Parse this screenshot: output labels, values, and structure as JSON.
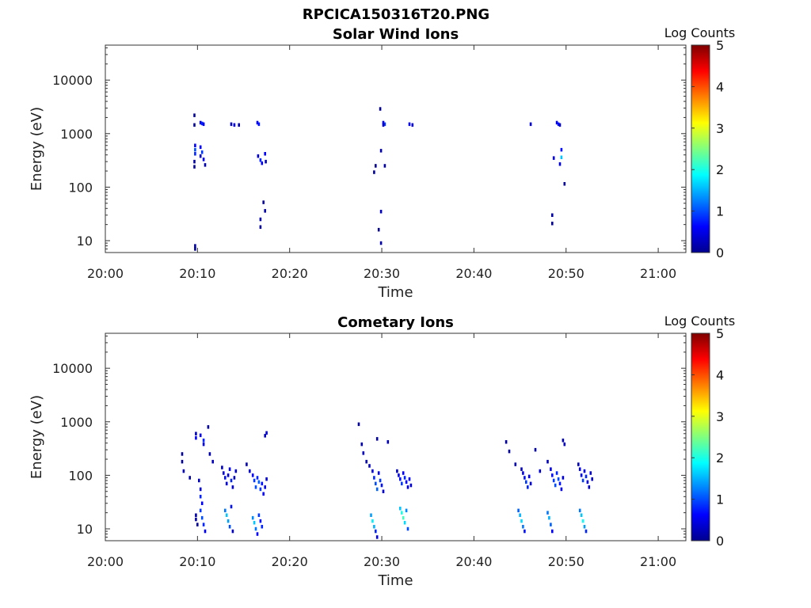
{
  "figure_title": "RPCICA150316T20.PNG",
  "chart_data": [
    {
      "type": "heatmap",
      "title": "Solar Wind Ions",
      "xlabel": "Time",
      "ylabel": "Energy (eV)",
      "xlim": [
        "20:00",
        "21:03"
      ],
      "x_ticks": [
        "20:00",
        "20:10",
        "20:20",
        "20:30",
        "20:40",
        "20:50",
        "21:00"
      ],
      "y_scale": "log",
      "ylim": [
        6,
        45000
      ],
      "y_ticks": [
        {
          "value": 10,
          "label": "10"
        },
        {
          "value": 100,
          "label": "100"
        },
        {
          "value": 1000,
          "label": "1000"
        },
        {
          "value": 10000,
          "label": "10000"
        }
      ],
      "colorbar": {
        "label": "Log Counts",
        "range": [
          0,
          5
        ],
        "ticks": [
          "0",
          "1",
          "2",
          "3",
          "4",
          "5"
        ],
        "colormap": "jet"
      },
      "cells": [
        [
          "20:09:40",
          2200,
          0.1
        ],
        [
          "20:09:40",
          1450,
          0.1
        ],
        [
          "20:09:45",
          600,
          0.6
        ],
        [
          "20:09:45",
          500,
          1.0
        ],
        [
          "20:09:45",
          420,
          0.8
        ],
        [
          "20:09:40",
          300,
          0.2
        ],
        [
          "20:09:40",
          240,
          0.1
        ],
        [
          "20:09:45",
          8,
          0.2
        ],
        [
          "20:09:45",
          7,
          0.1
        ],
        [
          "20:10:20",
          1600,
          0.4
        ],
        [
          "20:10:30",
          1550,
          0.8
        ],
        [
          "20:10:40",
          1500,
          0.5
        ],
        [
          "20:10:20",
          560,
          0.6
        ],
        [
          "20:10:30",
          450,
          0.9
        ],
        [
          "20:10:20",
          380,
          0.3
        ],
        [
          "20:10:40",
          330,
          0.5
        ],
        [
          "20:10:50",
          260,
          0.2
        ],
        [
          "20:13:40",
          1500,
          0.4
        ],
        [
          "20:14:00",
          1450,
          0.6
        ],
        [
          "20:14:30",
          1450,
          0.3
        ],
        [
          "20:16:30",
          1600,
          0.5
        ],
        [
          "20:16:40",
          1500,
          0.7
        ],
        [
          "20:16:35",
          380,
          0.4
        ],
        [
          "20:16:50",
          320,
          0.8
        ],
        [
          "20:17:00",
          280,
          0.5
        ],
        [
          "20:17:20",
          420,
          0.6
        ],
        [
          "20:17:25",
          300,
          0.3
        ],
        [
          "20:16:50",
          25,
          0.2
        ],
        [
          "20:16:50",
          18,
          0.1
        ],
        [
          "20:17:10",
          52,
          0.1
        ],
        [
          "20:17:20",
          36,
          0.2
        ],
        [
          "20:29:20",
          250,
          0.1
        ],
        [
          "20:29:10",
          190,
          0.1
        ],
        [
          "20:29:50",
          2900,
          0.1
        ],
        [
          "20:29:55",
          480,
          0.2
        ],
        [
          "20:29:55",
          35,
          0.3
        ],
        [
          "20:29:55",
          9,
          0.2
        ],
        [
          "20:29:40",
          16,
          0.1
        ],
        [
          "20:30:10",
          1600,
          0.6
        ],
        [
          "20:30:20",
          1500,
          0.9
        ],
        [
          "20:30:10",
          1450,
          0.4
        ],
        [
          "20:30:20",
          250,
          0.2
        ],
        [
          "20:33:00",
          1500,
          0.5
        ],
        [
          "20:33:20",
          1450,
          0.4
        ],
        [
          "20:46:10",
          1500,
          0.5
        ],
        [
          "20:48:30",
          30,
          0.2
        ],
        [
          "20:48:30",
          21,
          0.1
        ],
        [
          "20:48:40",
          350,
          0.4
        ],
        [
          "20:49:00",
          1600,
          0.5
        ],
        [
          "20:49:10",
          1500,
          0.7
        ],
        [
          "20:49:20",
          1450,
          0.3
        ],
        [
          "20:49:30",
          500,
          0.7
        ],
        [
          "20:49:30",
          360,
          1.6
        ],
        [
          "20:49:20",
          270,
          0.4
        ],
        [
          "20:49:50",
          115,
          0.1
        ]
      ]
    },
    {
      "type": "heatmap",
      "title": "Cometary Ions",
      "xlabel": "Time",
      "ylabel": "Energy (eV)",
      "xlim": [
        "20:00",
        "21:03"
      ],
      "x_ticks": [
        "20:00",
        "20:10",
        "20:20",
        "20:30",
        "20:40",
        "20:50",
        "21:00"
      ],
      "y_scale": "log",
      "ylim": [
        6,
        45000
      ],
      "y_ticks": [
        {
          "value": 10,
          "label": "10"
        },
        {
          "value": 100,
          "label": "100"
        },
        {
          "value": 1000,
          "label": "1000"
        },
        {
          "value": 10000,
          "label": "10000"
        }
      ],
      "colorbar": {
        "label": "Log Counts",
        "range": [
          0,
          5
        ],
        "ticks": [
          "0",
          "1",
          "2",
          "3",
          "4",
          "5"
        ],
        "colormap": "jet"
      },
      "cells": [
        [
          "20:08:20",
          250,
          0.1
        ],
        [
          "20:08:20",
          180,
          0.1
        ],
        [
          "20:08:30",
          120,
          0.3
        ],
        [
          "20:09:10",
          90,
          0.2
        ],
        [
          "20:09:50",
          600,
          0.3
        ],
        [
          "20:09:50",
          500,
          0.6
        ],
        [
          "20:10:20",
          560,
          0.5
        ],
        [
          "20:10:40",
          450,
          0.8
        ],
        [
          "20:10:40",
          380,
          0.4
        ],
        [
          "20:11:10",
          800,
          0.1
        ],
        [
          "20:11:20",
          250,
          0.2
        ],
        [
          "20:11:40",
          180,
          0.3
        ],
        [
          "20:09:50",
          18,
          0.2
        ],
        [
          "20:09:50",
          15,
          0.2
        ],
        [
          "20:10:00",
          12,
          0.1
        ],
        [
          "20:10:10",
          80,
          0.3
        ],
        [
          "20:10:20",
          55,
          0.4
        ],
        [
          "20:10:20",
          40,
          0.8
        ],
        [
          "20:10:30",
          30,
          0.6
        ],
        [
          "20:10:20",
          22,
          0.9
        ],
        [
          "20:10:30",
          16,
          1.0
        ],
        [
          "20:10:40",
          12,
          0.8
        ],
        [
          "20:10:50",
          9,
          0.5
        ],
        [
          "20:12:40",
          140,
          0.3
        ],
        [
          "20:12:50",
          110,
          0.5
        ],
        [
          "20:13:00",
          90,
          0.7
        ],
        [
          "20:13:10",
          70,
          0.5
        ],
        [
          "20:13:20",
          100,
          0.4
        ],
        [
          "20:13:30",
          130,
          0.6
        ],
        [
          "20:13:40",
          80,
          0.8
        ],
        [
          "20:13:50",
          60,
          0.5
        ],
        [
          "20:14:00",
          90,
          0.3
        ],
        [
          "20:14:10",
          120,
          0.4
        ],
        [
          "20:13:00",
          22,
          1.2
        ],
        [
          "20:13:10",
          18,
          1.6
        ],
        [
          "20:13:20",
          14,
          1.4
        ],
        [
          "20:13:30",
          11,
          1.0
        ],
        [
          "20:13:40",
          26,
          0.7
        ],
        [
          "20:13:50",
          9,
          0.4
        ],
        [
          "20:15:20",
          160,
          0.2
        ],
        [
          "20:15:40",
          120,
          0.4
        ],
        [
          "20:16:00",
          100,
          0.6
        ],
        [
          "20:16:10",
          80,
          0.9
        ],
        [
          "20:16:20",
          60,
          1.0
        ],
        [
          "20:16:30",
          90,
          0.8
        ],
        [
          "20:16:40",
          75,
          1.1
        ],
        [
          "20:16:50",
          55,
          0.9
        ],
        [
          "20:17:00",
          70,
          0.7
        ],
        [
          "20:17:10",
          45,
          0.6
        ],
        [
          "20:17:20",
          60,
          0.5
        ],
        [
          "20:17:30",
          85,
          0.4
        ],
        [
          "20:17:20",
          550,
          0.3
        ],
        [
          "20:17:30",
          620,
          0.4
        ],
        [
          "20:16:00",
          16,
          1.3
        ],
        [
          "20:16:10",
          13,
          1.6
        ],
        [
          "20:16:20",
          10,
          1.2
        ],
        [
          "20:16:30",
          8,
          0.6
        ],
        [
          "20:16:40",
          18,
          0.9
        ],
        [
          "20:16:50",
          14,
          0.7
        ],
        [
          "20:17:00",
          11,
          0.8
        ],
        [
          "20:27:30",
          900,
          0.1
        ],
        [
          "20:27:50",
          380,
          0.2
        ],
        [
          "20:28:00",
          260,
          0.3
        ],
        [
          "20:28:20",
          180,
          0.2
        ],
        [
          "20:28:40",
          150,
          0.3
        ],
        [
          "20:29:00",
          120,
          0.5
        ],
        [
          "20:29:10",
          90,
          0.8
        ],
        [
          "20:29:20",
          70,
          1.0
        ],
        [
          "20:29:30",
          55,
          1.1
        ],
        [
          "20:29:40",
          110,
          0.6
        ],
        [
          "20:29:50",
          80,
          0.9
        ],
        [
          "20:30:00",
          65,
          0.7
        ],
        [
          "20:30:10",
          50,
          0.5
        ],
        [
          "20:29:30",
          480,
          0.2
        ],
        [
          "20:30:40",
          420,
          0.3
        ],
        [
          "20:28:50",
          18,
          1.4
        ],
        [
          "20:29:00",
          14,
          1.8
        ],
        [
          "20:29:10",
          11,
          1.5
        ],
        [
          "20:29:20",
          9,
          0.8
        ],
        [
          "20:29:30",
          7,
          0.5
        ],
        [
          "20:31:40",
          120,
          0.3
        ],
        [
          "20:31:50",
          100,
          0.5
        ],
        [
          "20:32:00",
          85,
          0.7
        ],
        [
          "20:32:10",
          70,
          0.9
        ],
        [
          "20:32:20",
          110,
          0.6
        ],
        [
          "20:32:30",
          90,
          0.8
        ],
        [
          "20:32:40",
          75,
          0.6
        ],
        [
          "20:32:50",
          60,
          0.4
        ],
        [
          "20:33:00",
          85,
          0.5
        ],
        [
          "20:33:10",
          65,
          0.4
        ],
        [
          "20:32:00",
          24,
          1.6
        ],
        [
          "20:32:10",
          20,
          2.0
        ],
        [
          "20:32:20",
          16,
          2.2
        ],
        [
          "20:32:30",
          13,
          1.7
        ],
        [
          "20:32:40",
          22,
          1.3
        ],
        [
          "20:32:50",
          10,
          1.0
        ],
        [
          "20:43:30",
          420,
          0.1
        ],
        [
          "20:43:50",
          280,
          0.1
        ],
        [
          "20:44:30",
          160,
          0.2
        ],
        [
          "20:45:10",
          130,
          0.3
        ],
        [
          "20:45:20",
          110,
          0.5
        ],
        [
          "20:45:30",
          90,
          0.7
        ],
        [
          "20:45:40",
          75,
          0.9
        ],
        [
          "20:45:50",
          60,
          0.8
        ],
        [
          "20:46:00",
          95,
          0.6
        ],
        [
          "20:46:10",
          70,
          0.5
        ],
        [
          "20:44:50",
          22,
          1.1
        ],
        [
          "20:45:00",
          18,
          1.5
        ],
        [
          "20:45:10",
          14,
          1.7
        ],
        [
          "20:45:20",
          11,
          1.2
        ],
        [
          "20:45:30",
          9,
          0.7
        ],
        [
          "20:46:40",
          300,
          0.2
        ],
        [
          "20:47:10",
          120,
          0.4
        ],
        [
          "20:48:00",
          180,
          0.3
        ],
        [
          "20:48:20",
          130,
          0.5
        ],
        [
          "20:48:30",
          100,
          0.7
        ],
        [
          "20:48:40",
          80,
          0.9
        ],
        [
          "20:48:50",
          65,
          1.0
        ],
        [
          "20:49:00",
          110,
          0.8
        ],
        [
          "20:49:10",
          85,
          1.0
        ],
        [
          "20:49:20",
          70,
          0.7
        ],
        [
          "20:49:30",
          55,
          0.5
        ],
        [
          "20:49:40",
          90,
          0.4
        ],
        [
          "20:48:00",
          20,
          1.2
        ],
        [
          "20:48:10",
          16,
          1.5
        ],
        [
          "20:48:20",
          12,
          1.1
        ],
        [
          "20:48:30",
          9,
          0.6
        ],
        [
          "20:49:40",
          450,
          0.2
        ],
        [
          "20:49:50",
          380,
          0.3
        ],
        [
          "20:51:20",
          160,
          0.3
        ],
        [
          "20:51:30",
          130,
          0.5
        ],
        [
          "20:51:40",
          100,
          0.7
        ],
        [
          "20:51:50",
          80,
          0.9
        ],
        [
          "20:52:00",
          120,
          0.6
        ],
        [
          "20:52:10",
          95,
          0.8
        ],
        [
          "20:52:20",
          75,
          0.6
        ],
        [
          "20:52:30",
          60,
          0.4
        ],
        [
          "20:52:40",
          110,
          0.5
        ],
        [
          "20:52:50",
          85,
          0.4
        ],
        [
          "20:51:30",
          22,
          1.2
        ],
        [
          "20:51:40",
          18,
          1.6
        ],
        [
          "20:51:50",
          14,
          1.9
        ],
        [
          "20:52:00",
          11,
          1.4
        ],
        [
          "20:52:10",
          9,
          0.8
        ]
      ]
    }
  ]
}
